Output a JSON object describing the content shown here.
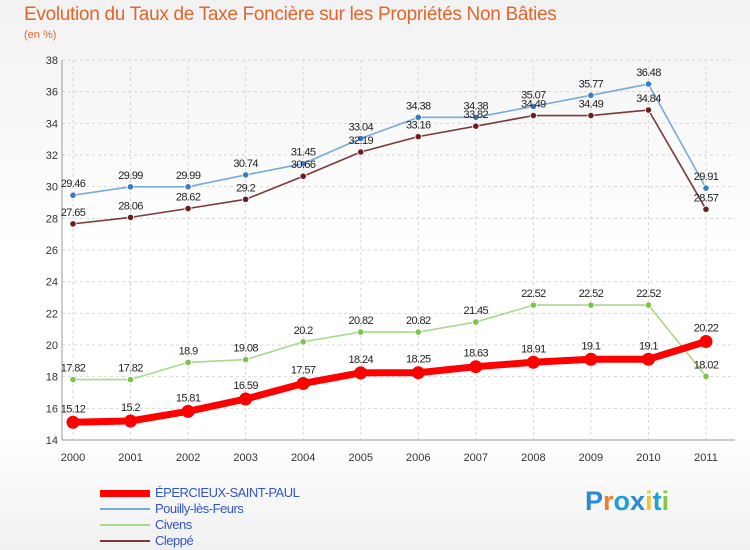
{
  "header": {
    "title": "Evolution du Taux de Taxe Foncière sur les Propriétés Non Bâties",
    "unit": "(en %)"
  },
  "brand": {
    "letters": [
      "P",
      "r",
      "o",
      "x",
      "i",
      "t",
      "i"
    ],
    "colors": [
      "#2a89d4",
      "#e9802a",
      "#1f9fd6",
      "#2a89d4",
      "#f2c232",
      "#1f9fd6",
      "#8bc53f"
    ]
  },
  "chart_data": {
    "type": "line",
    "categories": [
      "2000",
      "2001",
      "2002",
      "2003",
      "2004",
      "2005",
      "2006",
      "2007",
      "2008",
      "2009",
      "2010",
      "2011"
    ],
    "ylim": [
      14,
      38
    ],
    "yticks": [
      14,
      16,
      18,
      20,
      22,
      24,
      26,
      28,
      30,
      32,
      34,
      36,
      38
    ],
    "grid": true,
    "legend_position": "bottom-left",
    "series": [
      {
        "name": "Pouilly-lès-Feurs",
        "color": "#77aadd",
        "marker": "#3a7cc4",
        "values": [
          29.46,
          29.99,
          29.99,
          30.74,
          31.45,
          33.04,
          34.38,
          34.38,
          35.07,
          35.77,
          36.48,
          29.91
        ],
        "labels": [
          "29.46",
          "29.99",
          "29.99",
          "30.74",
          "31.45",
          "33.04",
          "34.38",
          "34.38",
          "35.07",
          "35.77",
          "36.48",
          "29.91"
        ]
      },
      {
        "name": "Cleppé",
        "color": "#7a3a3a",
        "marker": "#6a1f1f",
        "values": [
          27.65,
          28.06,
          28.62,
          29.2,
          30.66,
          32.19,
          33.16,
          33.82,
          34.49,
          34.49,
          34.84,
          28.57
        ],
        "labels": [
          "27.65",
          "28.06",
          "28.62",
          "29.2",
          "30.66",
          "32.19",
          "33.16",
          "33.82",
          "34.49",
          "34.49",
          "34.84",
          "28.57"
        ]
      },
      {
        "name": "Civens",
        "color": "#a6d98a",
        "marker": "#7cc44a",
        "values": [
          17.82,
          17.82,
          18.9,
          19.08,
          20.2,
          20.82,
          20.82,
          21.45,
          22.52,
          22.52,
          22.52,
          18.02
        ],
        "labels": [
          "17.82",
          "17.82",
          "18.9",
          "19.08",
          "20.2",
          "20.82",
          "20.82",
          "21.45",
          "22.52",
          "22.52",
          "22.52",
          "18.02"
        ]
      },
      {
        "name": "ÉPERCIEUX-SAINT-PAUL",
        "color": "#ff0000",
        "marker": "#ff0000",
        "values": [
          15.12,
          15.2,
          15.81,
          16.59,
          17.57,
          18.24,
          18.25,
          18.63,
          18.91,
          19.1,
          19.1,
          20.22
        ],
        "labels": [
          "15.12",
          "15.2",
          "15.81",
          "16.59",
          "17.57",
          "18.24",
          "18.25",
          "18.63",
          "18.91",
          "19.1",
          "19.1",
          "20.22"
        ]
      }
    ]
  },
  "legend": {
    "items": [
      {
        "label": "ÉPERCIEUX-SAINT-PAUL",
        "color": "#ff0000",
        "thickness": 7
      },
      {
        "label": "Pouilly-lès-Feurs",
        "color": "#77aadd",
        "thickness": 2
      },
      {
        "label": "Civens",
        "color": "#a6d98a",
        "thickness": 2
      },
      {
        "label": "Cleppé",
        "color": "#7a3a3a",
        "thickness": 2
      }
    ]
  }
}
